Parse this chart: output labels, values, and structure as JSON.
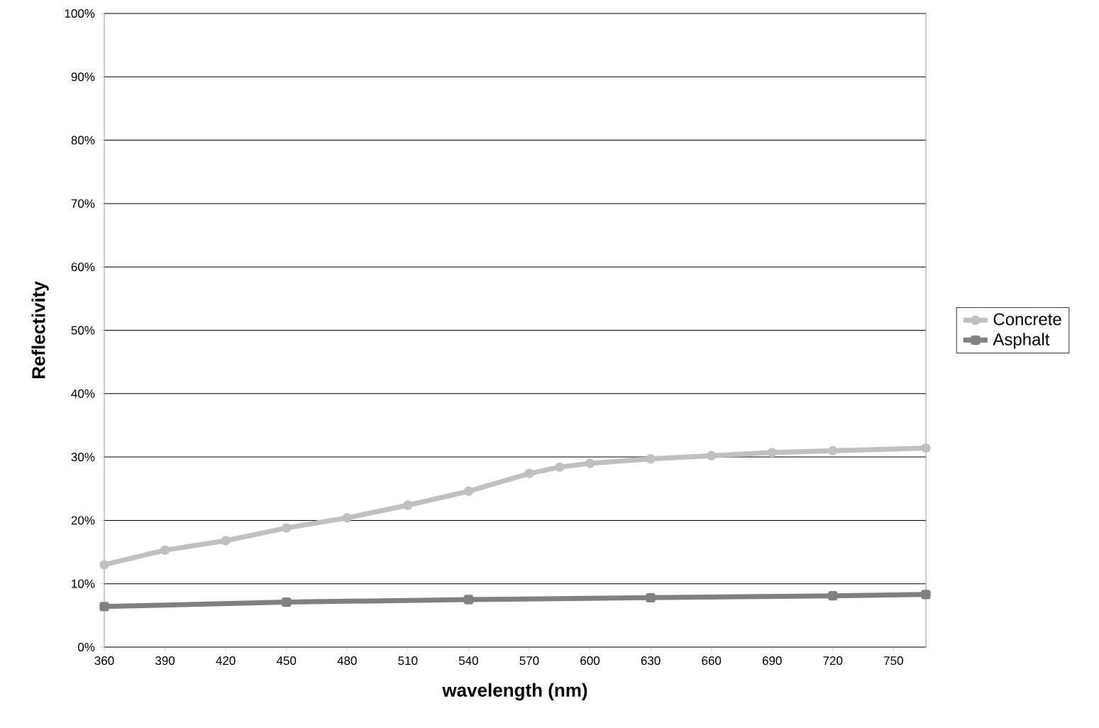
{
  "chart_data": {
    "type": "line",
    "xlabel": "wavelength (nm)",
    "ylabel": "Reflectivity",
    "xlim": [
      360,
      766
    ],
    "ylim": [
      0,
      100
    ],
    "xticks": [
      360,
      390,
      420,
      450,
      480,
      510,
      540,
      570,
      600,
      630,
      660,
      690,
      720,
      750
    ],
    "yticks": [
      {
        "value": 0,
        "label": "0%"
      },
      {
        "value": 10,
        "label": "10%"
      },
      {
        "value": 20,
        "label": "20%"
      },
      {
        "value": 30,
        "label": "30%"
      },
      {
        "value": 40,
        "label": "40%"
      },
      {
        "value": 50,
        "label": "50%"
      },
      {
        "value": 60,
        "label": "60%"
      },
      {
        "value": 70,
        "label": "70%"
      },
      {
        "value": 80,
        "label": "80%"
      },
      {
        "value": 90,
        "label": "90%"
      },
      {
        "value": 100,
        "label": "100%"
      }
    ],
    "grid": "y",
    "legend": "right",
    "series": [
      {
        "name": "Concrete",
        "color": "#c0c0c0",
        "marker": "circle",
        "x": [
          360,
          390,
          420,
          450,
          480,
          510,
          540,
          570,
          585,
          600,
          630,
          660,
          690,
          720,
          766
        ],
        "values": [
          13.0,
          15.3,
          16.8,
          18.8,
          20.4,
          22.4,
          24.6,
          27.4,
          28.4,
          29.0,
          29.7,
          30.2,
          30.7,
          31.0,
          31.4
        ]
      },
      {
        "name": "Asphalt",
        "color": "#808080",
        "marker": "square",
        "x": [
          360,
          450,
          540,
          630,
          720,
          766
        ],
        "values": [
          6.4,
          7.1,
          7.5,
          7.8,
          8.1,
          8.3
        ]
      }
    ]
  }
}
